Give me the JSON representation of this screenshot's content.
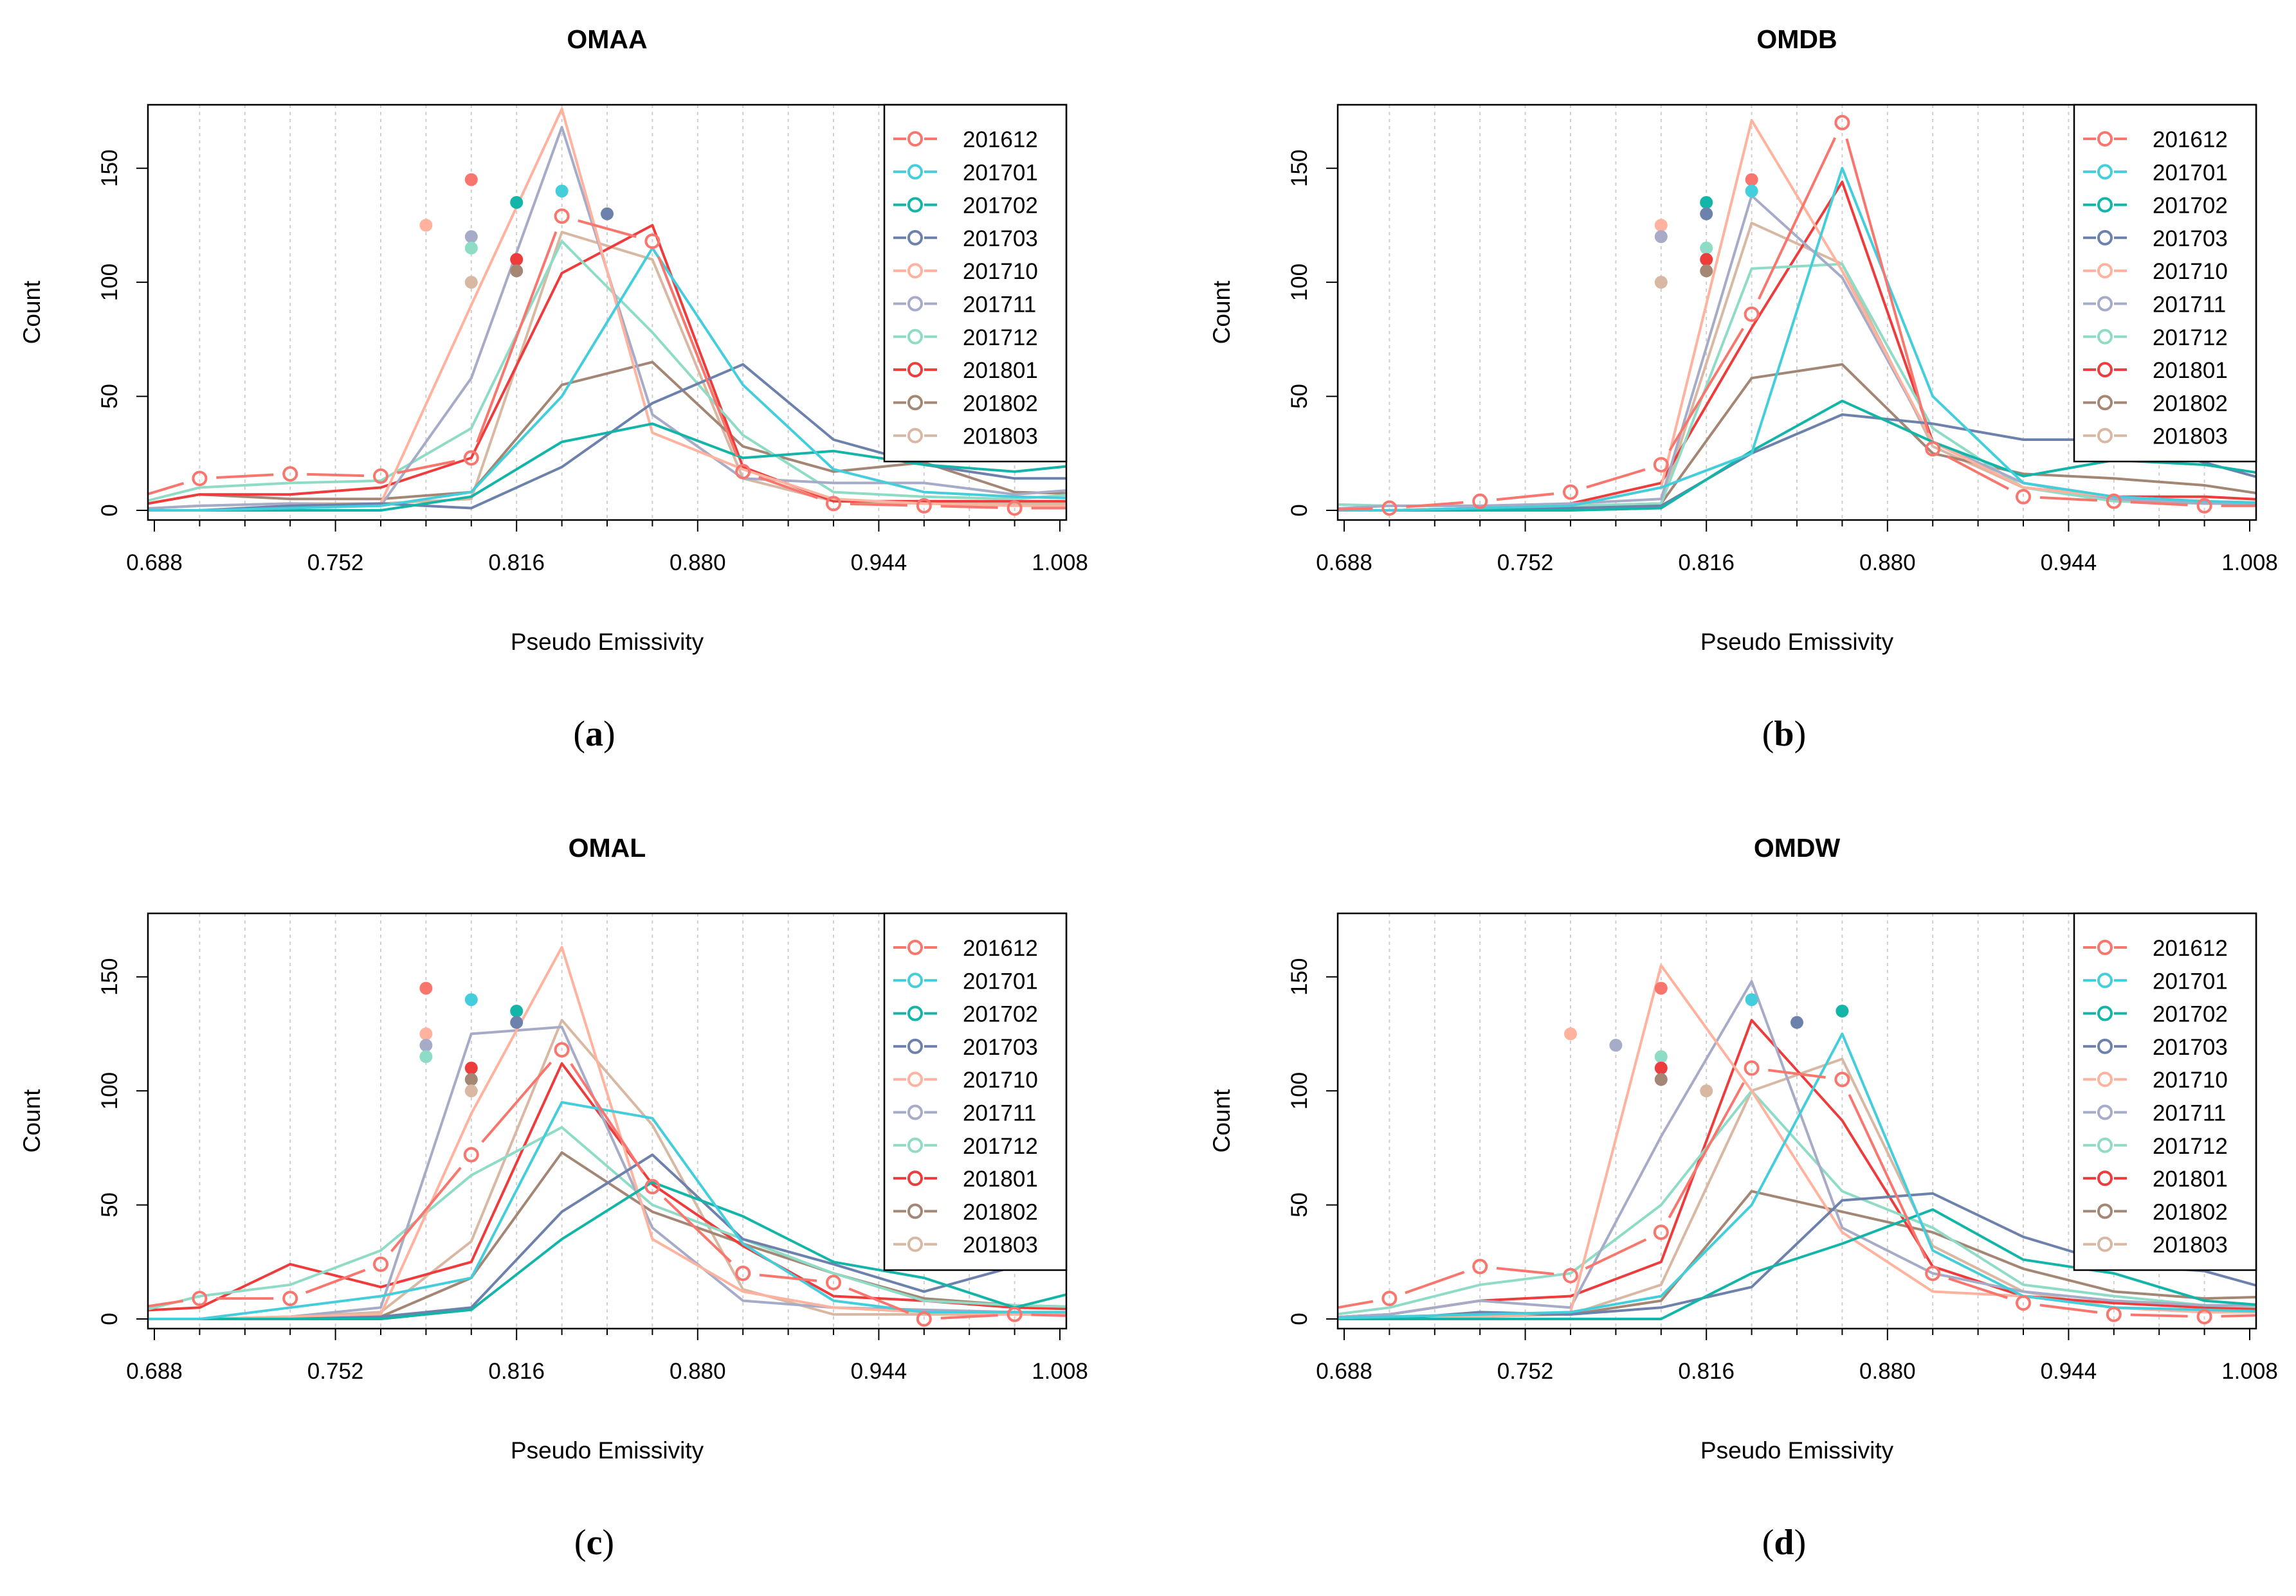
{
  "figure": {
    "x_axis_label": "Pseudo Emissivity",
    "y_axis_label": "Count"
  },
  "legend": {
    "entries": [
      "201612",
      "201701",
      "201702",
      "201703",
      "201710",
      "201711",
      "201712",
      "201801",
      "201802",
      "201803"
    ]
  },
  "colors": {
    "201612": "#F8766D",
    "201701": "#44CEDC",
    "201702": "#12B5A7",
    "201703": "#6C81AC",
    "201710": "#FFB29E",
    "201711": "#A6ABC8",
    "201712": "#8FDCC6",
    "201801": "#EE3C3C",
    "201802": "#A48675",
    "201803": "#D8B8A2"
  },
  "chart_data": [
    {
      "type": "line",
      "title": "OMAA",
      "caption_letter": "a",
      "xlabel": "Pseudo Emissivity",
      "ylabel": "Count",
      "xlim": [
        0.688,
        1.008
      ],
      "ylim": [
        0,
        175
      ],
      "x_ticks": [
        "0.688",
        "0.752",
        "0.816",
        "0.880",
        "0.944",
        "1.008"
      ],
      "y_ticks": [
        "0",
        "50",
        "100",
        "150"
      ],
      "legend_position": "top-right",
      "x": [
        0.672,
        0.704,
        0.736,
        0.768,
        0.8,
        0.832,
        0.864,
        0.896,
        0.928,
        0.96,
        0.992,
        1.024
      ],
      "series": [
        {
          "name": "201612",
          "values": [
            2,
            14,
            16,
            15,
            23,
            129,
            118,
            17,
            3,
            2,
            1,
            1
          ],
          "markers": true
        },
        {
          "name": "201701",
          "values": [
            0,
            0,
            1,
            2,
            8,
            50,
            115,
            55,
            18,
            8,
            6,
            5
          ]
        },
        {
          "name": "201702",
          "values": [
            0,
            0,
            0,
            0,
            6,
            30,
            38,
            23,
            26,
            20,
            17,
            21
          ]
        },
        {
          "name": "201703",
          "values": [
            0,
            0,
            2,
            3,
            1,
            19,
            47,
            64,
            31,
            20,
            14,
            14
          ]
        },
        {
          "name": "201710",
          "values": [
            0,
            0,
            2,
            3,
            90,
            176,
            34,
            18,
            5,
            3,
            2,
            2
          ]
        },
        {
          "name": "201711",
          "values": [
            0,
            2,
            3,
            2,
            58,
            168,
            42,
            14,
            12,
            12,
            7,
            10
          ]
        },
        {
          "name": "201712",
          "values": [
            0,
            10,
            12,
            13,
            36,
            118,
            78,
            33,
            8,
            6,
            5,
            8
          ]
        },
        {
          "name": "201801",
          "values": [
            0,
            7,
            7,
            10,
            23,
            104,
            125,
            19,
            4,
            4,
            4,
            4
          ]
        },
        {
          "name": "201802",
          "values": [
            0,
            7,
            5,
            5,
            8,
            55,
            65,
            28,
            17,
            21,
            8,
            7
          ]
        },
        {
          "name": "201803",
          "values": [
            0,
            2,
            3,
            3,
            5,
            122,
            110,
            14,
            4,
            3,
            3,
            3
          ]
        }
      ],
      "peak_points": [
        {
          "name": "201612",
          "x": 0.8,
          "y": 145
        },
        {
          "name": "201701",
          "x": 0.832,
          "y": 140
        },
        {
          "name": "201702",
          "x": 0.816,
          "y": 135
        },
        {
          "name": "201703",
          "x": 0.848,
          "y": 130
        },
        {
          "name": "201710",
          "x": 0.784,
          "y": 125
        },
        {
          "name": "201711",
          "x": 0.8,
          "y": 120
        },
        {
          "name": "201712",
          "x": 0.8,
          "y": 115
        },
        {
          "name": "201801",
          "x": 0.816,
          "y": 110
        },
        {
          "name": "201802",
          "x": 0.816,
          "y": 105
        },
        {
          "name": "201803",
          "x": 0.8,
          "y": 100
        }
      ]
    },
    {
      "type": "line",
      "title": "OMDB",
      "caption_letter": "b",
      "xlabel": "Pseudo Emissivity",
      "ylabel": "Count",
      "xlim": [
        0.688,
        1.008
      ],
      "ylim": [
        0,
        175
      ],
      "x_ticks": [
        "0.688",
        "0.752",
        "0.816",
        "0.880",
        "0.944",
        "1.008"
      ],
      "y_ticks": [
        "0",
        "50",
        "100",
        "150"
      ],
      "legend_position": "top-right",
      "x": [
        0.672,
        0.704,
        0.736,
        0.768,
        0.8,
        0.832,
        0.864,
        0.896,
        0.928,
        0.96,
        0.992,
        1.024
      ],
      "series": [
        {
          "name": "201612",
          "values": [
            0,
            1,
            4,
            8,
            20,
            86,
            170,
            27,
            6,
            4,
            2,
            2
          ],
          "markers": true
        },
        {
          "name": "201701",
          "values": [
            0,
            0,
            1,
            2,
            10,
            25,
            150,
            50,
            12,
            6,
            4,
            3
          ]
        },
        {
          "name": "201702",
          "values": [
            0,
            0,
            0,
            0,
            1,
            26,
            48,
            30,
            15,
            22,
            20,
            14
          ]
        },
        {
          "name": "201703",
          "values": [
            0,
            0,
            0,
            1,
            2,
            25,
            42,
            38,
            31,
            31,
            21,
            10
          ]
        },
        {
          "name": "201710",
          "values": [
            0,
            0,
            1,
            2,
            10,
            171,
            105,
            30,
            10,
            6,
            4,
            3
          ]
        },
        {
          "name": "201711",
          "values": [
            0,
            2,
            2,
            3,
            5,
            138,
            102,
            30,
            12,
            5,
            3,
            3
          ]
        },
        {
          "name": "201712",
          "values": [
            3,
            2,
            2,
            2,
            3,
            106,
            108,
            36,
            10,
            4,
            3,
            3
          ]
        },
        {
          "name": "201801",
          "values": [
            0,
            0,
            1,
            3,
            12,
            80,
            144,
            30,
            10,
            6,
            6,
            4
          ]
        },
        {
          "name": "201802",
          "values": [
            0,
            0,
            1,
            2,
            3,
            58,
            64,
            25,
            16,
            14,
            11,
            5
          ]
        },
        {
          "name": "201803",
          "values": [
            0,
            0,
            0,
            1,
            3,
            126,
            108,
            28,
            10,
            5,
            4,
            3
          ]
        }
      ],
      "peak_points": [
        {
          "name": "201612",
          "x": 0.832,
          "y": 145
        },
        {
          "name": "201701",
          "x": 0.832,
          "y": 140
        },
        {
          "name": "201702",
          "x": 0.816,
          "y": 135
        },
        {
          "name": "201703",
          "x": 0.816,
          "y": 130
        },
        {
          "name": "201710",
          "x": 0.8,
          "y": 125
        },
        {
          "name": "201711",
          "x": 0.8,
          "y": 120
        },
        {
          "name": "201712",
          "x": 0.816,
          "y": 115
        },
        {
          "name": "201801",
          "x": 0.816,
          "y": 110
        },
        {
          "name": "201802",
          "x": 0.816,
          "y": 105
        },
        {
          "name": "201803",
          "x": 0.8,
          "y": 100
        }
      ]
    },
    {
      "type": "line",
      "title": "OMAL",
      "caption_letter": "c",
      "xlabel": "Pseudo Emissivity",
      "ylabel": "Count",
      "xlim": [
        0.688,
        1.008
      ],
      "ylim": [
        0,
        175
      ],
      "x_ticks": [
        "0.688",
        "0.752",
        "0.816",
        "0.880",
        "0.944",
        "1.008"
      ],
      "y_ticks": [
        "0",
        "50",
        "100",
        "150"
      ],
      "legend_position": "top-right",
      "x": [
        0.672,
        0.704,
        0.736,
        0.768,
        0.8,
        0.832,
        0.864,
        0.896,
        0.928,
        0.96,
        0.992,
        1.024
      ],
      "series": [
        {
          "name": "201612",
          "values": [
            3,
            9,
            9,
            24,
            72,
            118,
            58,
            20,
            16,
            0,
            2,
            1
          ],
          "markers": true
        },
        {
          "name": "201701",
          "values": [
            0,
            0,
            5,
            10,
            18,
            95,
            88,
            33,
            8,
            3,
            3,
            3
          ]
        },
        {
          "name": "201702",
          "values": [
            0,
            0,
            0,
            0,
            4,
            35,
            60,
            45,
            25,
            18,
            5,
            15
          ]
        },
        {
          "name": "201703",
          "values": [
            0,
            0,
            0,
            1,
            5,
            47,
            72,
            35,
            24,
            12,
            23,
            21
          ]
        },
        {
          "name": "201710",
          "values": [
            0,
            0,
            1,
            2,
            90,
            163,
            35,
            12,
            5,
            3,
            2,
            2
          ]
        },
        {
          "name": "201711",
          "values": [
            0,
            0,
            1,
            5,
            125,
            128,
            40,
            8,
            5,
            4,
            3,
            3
          ]
        },
        {
          "name": "201712",
          "values": [
            0,
            10,
            15,
            30,
            63,
            84,
            50,
            35,
            20,
            8,
            6,
            5
          ]
        },
        {
          "name": "201801",
          "values": [
            3,
            5,
            24,
            14,
            25,
            112,
            59,
            32,
            10,
            8,
            5,
            4
          ]
        },
        {
          "name": "201802",
          "values": [
            0,
            0,
            0,
            1,
            18,
            73,
            47,
            33,
            20,
            9,
            6,
            5
          ]
        },
        {
          "name": "201803",
          "values": [
            0,
            0,
            1,
            3,
            34,
            131,
            85,
            13,
            2,
            2,
            2,
            2
          ]
        }
      ],
      "peak_points": [
        {
          "name": "201612",
          "x": 0.784,
          "y": 145
        },
        {
          "name": "201701",
          "x": 0.8,
          "y": 140
        },
        {
          "name": "201702",
          "x": 0.816,
          "y": 135
        },
        {
          "name": "201703",
          "x": 0.816,
          "y": 130
        },
        {
          "name": "201710",
          "x": 0.784,
          "y": 125
        },
        {
          "name": "201711",
          "x": 0.784,
          "y": 120
        },
        {
          "name": "201712",
          "x": 0.784,
          "y": 115
        },
        {
          "name": "201801",
          "x": 0.8,
          "y": 110
        },
        {
          "name": "201802",
          "x": 0.8,
          "y": 105
        },
        {
          "name": "201803",
          "x": 0.8,
          "y": 100
        }
      ]
    },
    {
      "type": "line",
      "title": "OMDW",
      "caption_letter": "d",
      "xlabel": "Pseudo Emissivity",
      "ylabel": "Count",
      "xlim": [
        0.688,
        1.008
      ],
      "ylim": [
        0,
        175
      ],
      "x_ticks": [
        "0.688",
        "0.752",
        "0.816",
        "0.880",
        "0.944",
        "1.008"
      ],
      "y_ticks": [
        "0",
        "50",
        "100",
        "150"
      ],
      "legend_position": "top-right",
      "x": [
        0.672,
        0.704,
        0.736,
        0.768,
        0.8,
        0.832,
        0.864,
        0.896,
        0.928,
        0.96,
        0.992,
        1.024
      ],
      "series": [
        {
          "name": "201612",
          "values": [
            2,
            9,
            23,
            19,
            38,
            110,
            105,
            20,
            7,
            2,
            1,
            2
          ],
          "markers": true
        },
        {
          "name": "201701",
          "values": [
            0,
            1,
            2,
            3,
            10,
            50,
            125,
            30,
            10,
            5,
            4,
            3
          ]
        },
        {
          "name": "201702",
          "values": [
            0,
            0,
            0,
            0,
            0,
            20,
            33,
            48,
            26,
            20,
            8,
            5
          ]
        },
        {
          "name": "201703",
          "values": [
            0,
            0,
            3,
            2,
            5,
            14,
            52,
            55,
            36,
            24,
            21,
            10
          ]
        },
        {
          "name": "201710",
          "values": [
            0,
            0,
            1,
            3,
            155,
            100,
            38,
            12,
            10,
            5,
            3,
            3
          ]
        },
        {
          "name": "201711",
          "values": [
            0,
            2,
            8,
            5,
            80,
            148,
            40,
            20,
            12,
            8,
            6,
            6
          ]
        },
        {
          "name": "201712",
          "values": [
            0,
            5,
            15,
            20,
            50,
            100,
            56,
            40,
            15,
            10,
            6,
            5
          ]
        },
        {
          "name": "201801",
          "values": [
            0,
            2,
            8,
            10,
            25,
            131,
            87,
            23,
            10,
            7,
            5,
            4
          ]
        },
        {
          "name": "201802",
          "values": [
            0,
            1,
            2,
            2,
            8,
            56,
            47,
            38,
            22,
            12,
            9,
            10
          ]
        },
        {
          "name": "201803",
          "values": [
            0,
            0,
            1,
            2,
            15,
            100,
            114,
            32,
            12,
            5,
            3,
            3
          ]
        }
      ],
      "peak_points": [
        {
          "name": "201612",
          "x": 0.8,
          "y": 145
        },
        {
          "name": "201701",
          "x": 0.832,
          "y": 140
        },
        {
          "name": "201702",
          "x": 0.864,
          "y": 135
        },
        {
          "name": "201703",
          "x": 0.848,
          "y": 130
        },
        {
          "name": "201710",
          "x": 0.768,
          "y": 125
        },
        {
          "name": "201711",
          "x": 0.784,
          "y": 120
        },
        {
          "name": "201712",
          "x": 0.8,
          "y": 115
        },
        {
          "name": "201801",
          "x": 0.8,
          "y": 110
        },
        {
          "name": "201802",
          "x": 0.8,
          "y": 105
        },
        {
          "name": "201803",
          "x": 0.816,
          "y": 100
        }
      ]
    }
  ]
}
